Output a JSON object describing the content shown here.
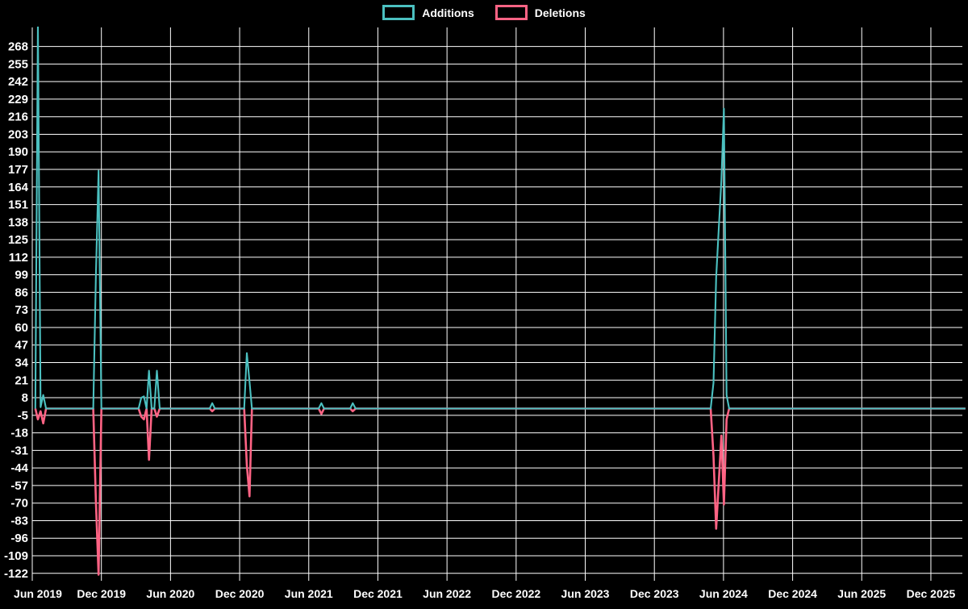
{
  "page": {
    "background": "#000000",
    "text_color": "#ffffff",
    "grid_color": "#ffffff"
  },
  "legend": {
    "items": [
      {
        "label": "Additions",
        "color": "#4bc0c0"
      },
      {
        "label": "Deletions",
        "color": "#ff6384"
      }
    ]
  },
  "chart_data": {
    "type": "line",
    "title": "",
    "xlabel": "",
    "ylabel": "",
    "legend_position": "top",
    "grid": true,
    "background": "#000000",
    "x_axis": {
      "tick_labels": [
        "Jun 2019",
        "Dec 2019",
        "Jun 2020",
        "Dec 2020",
        "Jun 2021",
        "Dec 2021",
        "Jun 2022",
        "Dec 2022",
        "Jun 2023",
        "Dec 2023",
        "Jun 2024",
        "Dec 2024",
        "Jun 2025",
        "Dec 2025"
      ],
      "epoch": "2019-06-01",
      "months_per_tick": 6
    },
    "y_axis": {
      "max": 268,
      "min": -122,
      "step": 13,
      "tick_values": [
        268,
        255,
        242,
        229,
        216,
        203,
        190,
        177,
        164,
        151,
        138,
        125,
        112,
        99,
        86,
        73,
        60,
        47,
        34,
        21,
        8,
        -5,
        -18,
        -31,
        -44,
        -57,
        -70,
        -83,
        -96,
        -109,
        -122
      ],
      "plot_top_value": 281.5,
      "plot_bottom_value": -127.5
    },
    "x": [
      "2019-06-09",
      "2019-06-16",
      "2019-06-23",
      "2019-06-30",
      "2019-07-07",
      "2019-11-10",
      "2019-11-17",
      "2019-11-24",
      "2019-12-01",
      "2020-03-08",
      "2020-03-15",
      "2020-03-22",
      "2020-03-29",
      "2020-04-05",
      "2020-04-12",
      "2020-04-19",
      "2020-04-26",
      "2020-05-03",
      "2020-09-13",
      "2020-09-20",
      "2020-09-27",
      "2020-12-13",
      "2020-12-20",
      "2020-12-27",
      "2021-01-03",
      "2021-06-27",
      "2021-07-04",
      "2021-07-11",
      "2021-09-19",
      "2021-09-26",
      "2021-10-03",
      "2024-04-28",
      "2024-05-05",
      "2024-05-12",
      "2024-05-19",
      "2024-05-26",
      "2024-06-02",
      "2024-06-09",
      "2024-06-16",
      "2026-03-01"
    ],
    "series": [
      {
        "name": "Additions",
        "color": "#4bc0c0",
        "values": [
          0,
          285,
          1,
          10,
          0,
          0,
          99,
          176,
          0,
          0,
          8,
          9,
          0,
          28,
          0,
          0,
          28,
          0,
          0,
          4,
          0,
          0,
          41,
          20,
          0,
          0,
          4,
          0,
          0,
          4,
          0,
          0,
          19,
          97,
          134,
          169,
          222,
          10,
          0,
          0
        ]
      },
      {
        "name": "Deletions",
        "color": "#ff6384",
        "values": [
          0,
          -8,
          -2,
          -11,
          0,
          0,
          -69,
          -123,
          0,
          0,
          -6,
          -8,
          0,
          -38,
          0,
          0,
          -6,
          0,
          0,
          -2,
          0,
          0,
          -42,
          -65,
          0,
          0,
          -4,
          0,
          0,
          -2,
          0,
          0,
          -35,
          -89,
          -54,
          -20,
          -71,
          -8,
          0,
          0
        ]
      }
    ]
  }
}
